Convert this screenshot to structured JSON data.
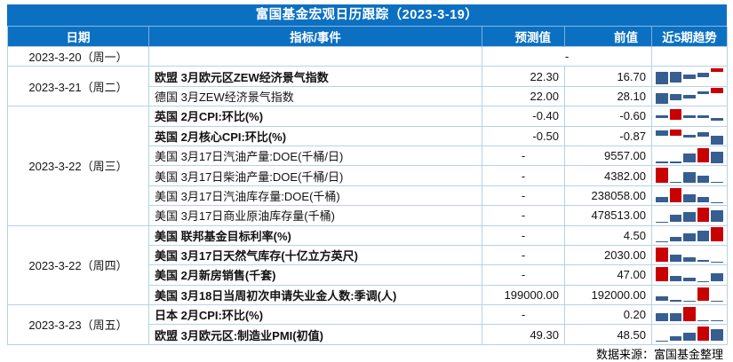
{
  "title": "富国基金宏观日历跟踪（2023-3-19）",
  "columns": {
    "date": "日期",
    "indicator": "指标/事件",
    "forecast": "预测值",
    "previous": "前值",
    "trend": "近5期趋势"
  },
  "footer": {
    "source_label": "数据来源：富国基金整理"
  },
  "colors": {
    "header_bg": "#0c70c2",
    "grid_line": "#b7d1ea",
    "bar_blue": "#365e91",
    "bar_red": "#c80000",
    "bottom_rule": "#2e75b6"
  },
  "groups": [
    {
      "date": "2023-3-20（周一）",
      "rows": [
        {
          "indicator": "",
          "bold": false,
          "merged": true,
          "forecast": "-",
          "previous": "",
          "trend": []
        }
      ]
    },
    {
      "date": "2023-3-21（周二）",
      "rows": [
        {
          "indicator": "欧盟 3月欧元区ZEW经济景气指数",
          "bold": true,
          "merged": false,
          "forecast": "22.30",
          "previous": "16.70",
          "trend": [
            [
              28,
              62,
              "b"
            ],
            [
              28,
              56,
              "b"
            ],
            [
              38,
              27,
              "b"
            ],
            [
              32,
              22,
              "b"
            ],
            [
              8,
              20,
              "r"
            ]
          ]
        },
        {
          "indicator": "德国 3月ZEW经济景气指数",
          "bold": false,
          "merged": false,
          "forecast": "22.00",
          "previous": "28.10",
          "trend": [
            [
              33,
              55,
              "b"
            ],
            [
              38,
              31,
              "b"
            ],
            [
              42,
              18,
              "b"
            ],
            [
              25,
              12,
              "b"
            ],
            [
              8,
              28,
              "r"
            ]
          ]
        }
      ]
    },
    {
      "date": "2023-3-22（周三）",
      "rows": [
        {
          "indicator": "英国 2月CPI:环比(%)",
          "bold": true,
          "merged": false,
          "forecast": "-0.40",
          "previous": "-0.60",
          "trend": [
            [
              46,
              13,
              "b"
            ],
            [
              15,
              55,
              "r"
            ],
            [
              48,
              13,
              "b"
            ],
            [
              48,
              13,
              "b"
            ],
            [
              62,
              11,
              "b"
            ]
          ]
        },
        {
          "indicator": "英国 2月核心CPI:环比(%)",
          "bold": true,
          "merged": false,
          "forecast": "-0.50",
          "previous": "-0.87",
          "trend": [
            [
              22,
              26,
              "b"
            ],
            [
              15,
              33,
              "r"
            ],
            [
              43,
              14,
              "b"
            ],
            [
              30,
              24,
              "b"
            ],
            [
              50,
              44,
              "b"
            ]
          ]
        },
        {
          "indicator": "美国 3月17日汽油产量:DOE(千桶/日)",
          "bold": false,
          "merged": false,
          "forecast": "-",
          "previous": "9557.00",
          "trend": [
            [
              80,
              7,
              "b"
            ],
            [
              80,
              7,
              "b"
            ],
            [
              37,
              48,
              "b"
            ],
            [
              9,
              76,
              "r"
            ],
            [
              26,
              62,
              "b"
            ]
          ]
        },
        {
          "indicator": "美国 3月17日柴油产量:DOE(千桶/日)",
          "bold": false,
          "merged": false,
          "forecast": "-",
          "previous": "4382.00",
          "trend": [
            [
              9,
              76,
              "r"
            ],
            [
              82,
              5,
              "b"
            ],
            [
              32,
              53,
              "b"
            ],
            [
              50,
              35,
              "b"
            ],
            [
              82,
              5,
              "b"
            ]
          ]
        },
        {
          "indicator": "美国 3月17日汽油库存量:DOE(千桶)",
          "bold": false,
          "merged": false,
          "forecast": "-",
          "previous": "238058.00",
          "trend": [
            [
              56,
              28,
              "b"
            ],
            [
              11,
              73,
              "r"
            ],
            [
              42,
              42,
              "b"
            ],
            [
              56,
              28,
              "b"
            ],
            [
              84,
              4,
              "b"
            ]
          ]
        },
        {
          "indicator": "美国 3月17日商业原油库存量(千桶)",
          "bold": false,
          "merged": false,
          "forecast": "-",
          "previous": "478513.00",
          "trend": [
            [
              84,
              4,
              "b"
            ],
            [
              46,
              38,
              "b"
            ],
            [
              31,
              53,
              "b"
            ],
            [
              11,
              73,
              "r"
            ],
            [
              23,
              61,
              "b"
            ]
          ]
        }
      ]
    },
    {
      "date": "2023-3-22（周四）",
      "rows": [
        {
          "indicator": "美国 联邦基金目标利率(%)",
          "bold": true,
          "merged": false,
          "forecast": "-",
          "previous": "4.50",
          "trend": [
            [
              84,
              4,
              "b"
            ],
            [
              57,
              27,
              "b"
            ],
            [
              42,
              42,
              "b"
            ],
            [
              24,
              60,
              "b"
            ],
            [
              6,
              78,
              "r"
            ]
          ]
        },
        {
          "indicator": "美国 3月17日天然气库存(十亿立方英尺)",
          "bold": true,
          "merged": false,
          "forecast": "-",
          "previous": "2030.00",
          "trend": [
            [
              9,
              76,
              "r"
            ],
            [
              49,
              34,
              "b"
            ],
            [
              61,
              22,
              "b"
            ],
            [
              73,
              11,
              "b"
            ],
            [
              84,
              4,
              "b"
            ]
          ]
        },
        {
          "indicator": "美国 2月新房销售(千套)",
          "bold": true,
          "merged": false,
          "forecast": "-",
          "previous": "47.00",
          "trend": [
            [
              9,
              76,
              "r"
            ],
            [
              57,
              26,
              "b"
            ],
            [
              66,
              17,
              "b"
            ],
            [
              84,
              4,
              "b"
            ],
            [
              42,
              42,
              "b"
            ]
          ]
        },
        {
          "indicator": "美国 3月18日当周初次申请失业金人数:季调(人)",
          "bold": true,
          "merged": false,
          "forecast": "199000.00",
          "previous": "192000.00",
          "trend": [
            [
              57,
              25,
              "b"
            ],
            [
              76,
              8,
              "b"
            ],
            [
              79,
              6,
              "b"
            ],
            [
              11,
              72,
              "r"
            ],
            [
              79,
              6,
              "b"
            ]
          ]
        }
      ]
    },
    {
      "date": "2023-3-23（周五）",
      "rows": [
        {
          "indicator": "日本 2月CPI:环比(%)",
          "bold": true,
          "merged": false,
          "forecast": "-",
          "previous": "0.20",
          "trend": [
            [
              42,
              40,
              "b"
            ],
            [
              42,
              40,
              "b"
            ],
            [
              11,
              72,
              "r"
            ],
            [
              81,
              5,
              "b"
            ],
            [
              81,
              5,
              "b"
            ]
          ]
        },
        {
          "indicator": "欧盟 3月欧元区:制造业PMI(初值)",
          "bold": true,
          "merged": false,
          "forecast": "49.30",
          "previous": "48.50",
          "trend": [
            [
              84,
              4,
              "b"
            ],
            [
              57,
              26,
              "b"
            ],
            [
              42,
              41,
              "b"
            ],
            [
              9,
              75,
              "r"
            ],
            [
              21,
              62,
              "b"
            ]
          ]
        }
      ]
    }
  ]
}
